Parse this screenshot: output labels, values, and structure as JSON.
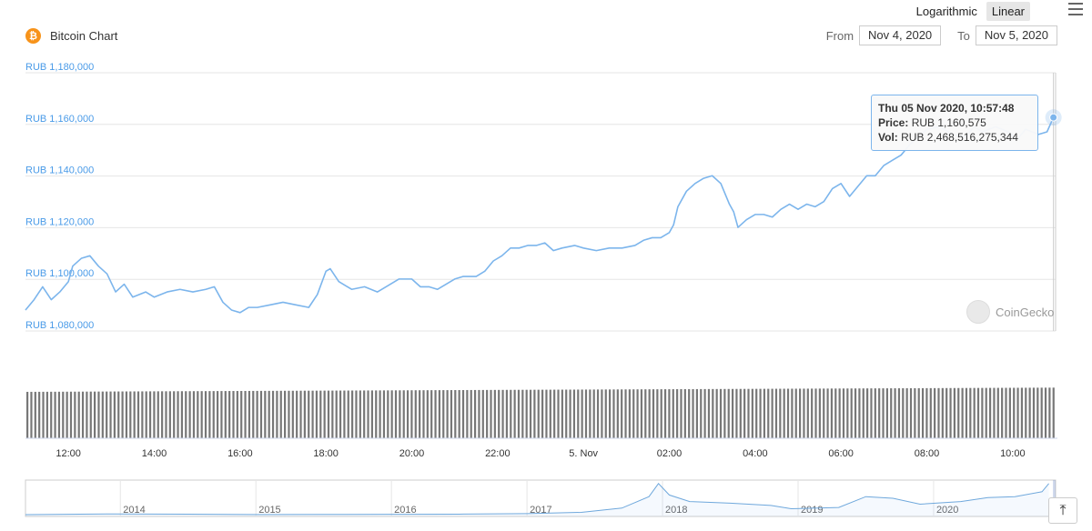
{
  "header": {
    "title": "Bitcoin Chart",
    "logo_glyph": "₿",
    "scale_options": [
      "Logarithmic",
      "Linear"
    ],
    "active_scale": "Linear",
    "from_label": "From",
    "from_value": "Nov 4, 2020",
    "to_label": "To",
    "to_value": "Nov 5, 2020"
  },
  "tooltip": {
    "date": "Thu 05 Nov 2020, 10:57:48",
    "price_label": "Price:",
    "price_value": "RUB 1,160,575",
    "vol_label": "Vol:",
    "vol_value": "RUB 2,468,516,275,344"
  },
  "watermark": "CoinGecko",
  "colors": {
    "line": "#7cb5ec",
    "volume": "#777777",
    "accent": "#4a9be8",
    "btc": "#f7931a"
  },
  "chart_data": {
    "type": "line",
    "title": "Bitcoin Chart",
    "y_tick_labels": [
      "RUB 1,080,000",
      "RUB 1,100,000",
      "RUB 1,120,000",
      "RUB 1,140,000",
      "RUB 1,160,000",
      "RUB 1,180,000"
    ],
    "y_ticks": [
      1080000,
      1100000,
      1120000,
      1140000,
      1160000,
      1180000
    ],
    "ylim": [
      1080000,
      1180000
    ],
    "x_tick_labels": [
      "12:00",
      "14:00",
      "16:00",
      "18:00",
      "20:00",
      "22:00",
      "5. Nov",
      "02:00",
      "04:00",
      "06:00",
      "08:00",
      "10:00"
    ],
    "x_tick_hours": [
      12,
      14,
      16,
      18,
      20,
      22,
      24,
      26,
      28,
      30,
      32,
      34
    ],
    "xlim_hours": [
      11,
      35
    ],
    "price": [
      [
        11.0,
        1086000
      ],
      [
        11.2,
        1090000
      ],
      [
        11.4,
        1095000
      ],
      [
        11.6,
        1090000
      ],
      [
        11.8,
        1093000
      ],
      [
        12.0,
        1097000
      ],
      [
        12.1,
        1103000
      ],
      [
        12.3,
        1106000
      ],
      [
        12.5,
        1107000
      ],
      [
        12.7,
        1103000
      ],
      [
        12.9,
        1100000
      ],
      [
        13.1,
        1093000
      ],
      [
        13.3,
        1096000
      ],
      [
        13.5,
        1091000
      ],
      [
        13.8,
        1093000
      ],
      [
        14.0,
        1091000
      ],
      [
        14.3,
        1093000
      ],
      [
        14.6,
        1094000
      ],
      [
        14.9,
        1093000
      ],
      [
        15.2,
        1094000
      ],
      [
        15.4,
        1095000
      ],
      [
        15.6,
        1089000
      ],
      [
        15.8,
        1086000
      ],
      [
        16.0,
        1085000
      ],
      [
        16.2,
        1087000
      ],
      [
        16.4,
        1087000
      ],
      [
        16.7,
        1088000
      ],
      [
        17.0,
        1089000
      ],
      [
        17.3,
        1088000
      ],
      [
        17.6,
        1087000
      ],
      [
        17.8,
        1092000
      ],
      [
        18.0,
        1101000
      ],
      [
        18.1,
        1102000
      ],
      [
        18.3,
        1097000
      ],
      [
        18.6,
        1094000
      ],
      [
        18.9,
        1095000
      ],
      [
        19.2,
        1093000
      ],
      [
        19.4,
        1095000
      ],
      [
        19.7,
        1098000
      ],
      [
        20.0,
        1098000
      ],
      [
        20.2,
        1095000
      ],
      [
        20.4,
        1095000
      ],
      [
        20.6,
        1094000
      ],
      [
        20.8,
        1096000
      ],
      [
        21.0,
        1098000
      ],
      [
        21.2,
        1099000
      ],
      [
        21.5,
        1099000
      ],
      [
        21.7,
        1101000
      ],
      [
        21.9,
        1105000
      ],
      [
        22.1,
        1107000
      ],
      [
        22.3,
        1110000
      ],
      [
        22.5,
        1110000
      ],
      [
        22.7,
        1111000
      ],
      [
        22.9,
        1111000
      ],
      [
        23.1,
        1112000
      ],
      [
        23.3,
        1109000
      ],
      [
        23.5,
        1110000
      ],
      [
        23.8,
        1111000
      ],
      [
        24.0,
        1110000
      ],
      [
        24.3,
        1109000
      ],
      [
        24.6,
        1110000
      ],
      [
        24.9,
        1110000
      ],
      [
        25.2,
        1111000
      ],
      [
        25.4,
        1113000
      ],
      [
        25.6,
        1114000
      ],
      [
        25.8,
        1114000
      ],
      [
        26.0,
        1116000
      ],
      [
        26.1,
        1119000
      ],
      [
        26.2,
        1126000
      ],
      [
        26.4,
        1132000
      ],
      [
        26.6,
        1135000
      ],
      [
        26.8,
        1137000
      ],
      [
        27.0,
        1138000
      ],
      [
        27.2,
        1135000
      ],
      [
        27.4,
        1127000
      ],
      [
        27.5,
        1124000
      ],
      [
        27.6,
        1118000
      ],
      [
        27.8,
        1121000
      ],
      [
        28.0,
        1123000
      ],
      [
        28.2,
        1123000
      ],
      [
        28.4,
        1122000
      ],
      [
        28.6,
        1125000
      ],
      [
        28.8,
        1127000
      ],
      [
        29.0,
        1125000
      ],
      [
        29.2,
        1127000
      ],
      [
        29.4,
        1126000
      ],
      [
        29.6,
        1128000
      ],
      [
        29.8,
        1133000
      ],
      [
        30.0,
        1135000
      ],
      [
        30.2,
        1130000
      ],
      [
        30.4,
        1134000
      ],
      [
        30.6,
        1138000
      ],
      [
        30.8,
        1138000
      ],
      [
        31.0,
        1142000
      ],
      [
        31.2,
        1144000
      ],
      [
        31.4,
        1146000
      ],
      [
        31.6,
        1150000
      ],
      [
        31.8,
        1153000
      ],
      [
        32.0,
        1156000
      ],
      [
        32.3,
        1157000
      ],
      [
        32.6,
        1154000
      ],
      [
        32.9,
        1153000
      ],
      [
        33.1,
        1157000
      ],
      [
        33.3,
        1155000
      ],
      [
        33.6,
        1157000
      ],
      [
        33.9,
        1155000
      ],
      [
        34.1,
        1152000
      ],
      [
        34.3,
        1156000
      ],
      [
        34.6,
        1154000
      ],
      [
        34.8,
        1155000
      ],
      [
        34.95,
        1160575
      ]
    ],
    "volume": {
      "start": 0.88,
      "end": 0.96,
      "max_label": ""
    },
    "navigator": {
      "labels": [
        "2014",
        "2015",
        "2016",
        "2017",
        "2018",
        "2019",
        "2020"
      ],
      "label_years": [
        2014,
        2015,
        2016,
        2017,
        2018,
        2019,
        2020
      ],
      "xlim_years": [
        2013.3,
        2020.9
      ],
      "series": [
        [
          2013.3,
          0.0
        ],
        [
          2013.9,
          0.02
        ],
        [
          2014.5,
          0.015
        ],
        [
          2015.0,
          0.005
        ],
        [
          2015.5,
          0.006
        ],
        [
          2016.0,
          0.01
        ],
        [
          2016.5,
          0.015
        ],
        [
          2017.0,
          0.03
        ],
        [
          2017.4,
          0.07
        ],
        [
          2017.7,
          0.2
        ],
        [
          2017.9,
          0.55
        ],
        [
          2017.97,
          0.95
        ],
        [
          2018.05,
          0.6
        ],
        [
          2018.2,
          0.4
        ],
        [
          2018.5,
          0.35
        ],
        [
          2018.8,
          0.28
        ],
        [
          2018.95,
          0.18
        ],
        [
          2019.3,
          0.22
        ],
        [
          2019.5,
          0.55
        ],
        [
          2019.7,
          0.5
        ],
        [
          2019.9,
          0.32
        ],
        [
          2020.2,
          0.4
        ],
        [
          2020.4,
          0.52
        ],
        [
          2020.6,
          0.55
        ],
        [
          2020.8,
          0.7
        ],
        [
          2020.85,
          0.95
        ]
      ]
    }
  }
}
